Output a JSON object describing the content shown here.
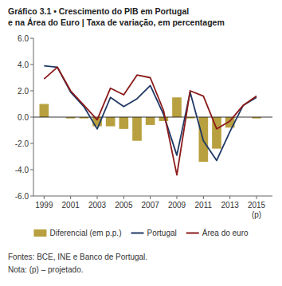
{
  "chart_data": {
    "type": "bar",
    "title": "Gráfico 3.1  •  Crescimento do PIB em Portugal",
    "subtitle": "e na Área do Euro | Taxa de variação, em percentagem",
    "x": [
      1999,
      2000,
      2001,
      2002,
      2003,
      2004,
      2005,
      2006,
      2007,
      2008,
      2009,
      2010,
      2011,
      2012,
      2013,
      2014,
      2015
    ],
    "series": [
      {
        "name": "Diferencial (em p.p.)",
        "type": "bar",
        "color": "#b8a040",
        "values": [
          1.0,
          0.0,
          -0.1,
          -0.1,
          -0.7,
          -0.7,
          -0.9,
          -1.8,
          -0.6,
          -0.3,
          1.5,
          -0.1,
          -3.4,
          -2.4,
          -0.8,
          0.0,
          -0.1
        ]
      },
      {
        "name": "Portugal",
        "type": "line",
        "color": "#1f3864",
        "values": [
          3.9,
          3.8,
          1.9,
          0.8,
          -0.9,
          1.5,
          0.8,
          1.4,
          2.4,
          0.2,
          -2.9,
          1.9,
          -1.8,
          -3.3,
          -1.1,
          0.9,
          1.5
        ]
      },
      {
        "name": "Área do euro",
        "type": "line",
        "color": "#8b1a1a",
        "values": [
          2.9,
          3.8,
          2.0,
          0.9,
          -0.2,
          2.2,
          1.7,
          3.2,
          3.0,
          0.5,
          -4.4,
          2.0,
          1.6,
          -0.9,
          -0.3,
          0.9,
          1.6
        ]
      }
    ],
    "xlim": [
      1998.2,
      2016.2
    ],
    "xticks": [
      1999,
      2001,
      2003,
      2005,
      2007,
      2009,
      2011,
      2013,
      2015
    ],
    "ylim": [
      -6.0,
      6.0
    ],
    "yticks": [
      {
        "value": -6.0,
        "label": "-6.0"
      },
      {
        "value": -4.0,
        "label": "-4.0"
      },
      {
        "value": -2.0,
        "label": "-2.0"
      },
      {
        "value": 0.0,
        "label": "0.0"
      },
      {
        "value": 2.0,
        "label": "2.0"
      },
      {
        "value": 4.0,
        "label": "4.0"
      },
      {
        "value": 6.0,
        "label": "6.0"
      }
    ],
    "annotations": [
      {
        "x": 2015,
        "text": "(p)"
      }
    ],
    "footnotes": [
      "Fontes: BCE, INE e Banco de Portugal.",
      "Nota: (p) – projetado."
    ],
    "legend": "bottom",
    "grid": false
  }
}
